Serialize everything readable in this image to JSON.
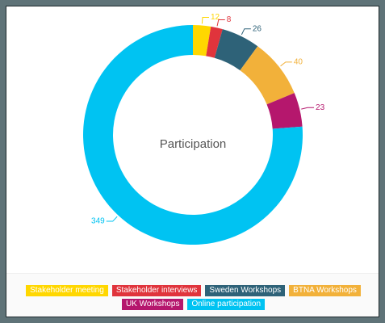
{
  "chart_data": {
    "type": "pie",
    "title": "Participation",
    "categories": [
      "Stakeholder meeting",
      "Stakeholder interviews",
      "Sweden Workshops",
      "BTNA Workshops",
      "UK Workshops",
      "Online participation"
    ],
    "values": [
      12,
      8,
      26,
      40,
      23,
      349
    ],
    "colors": [
      "#ffd700",
      "#e0343c",
      "#2e6278",
      "#f2b13a",
      "#b5176d",
      "#00c3f2"
    ],
    "donut": true,
    "legend_position": "bottom"
  }
}
